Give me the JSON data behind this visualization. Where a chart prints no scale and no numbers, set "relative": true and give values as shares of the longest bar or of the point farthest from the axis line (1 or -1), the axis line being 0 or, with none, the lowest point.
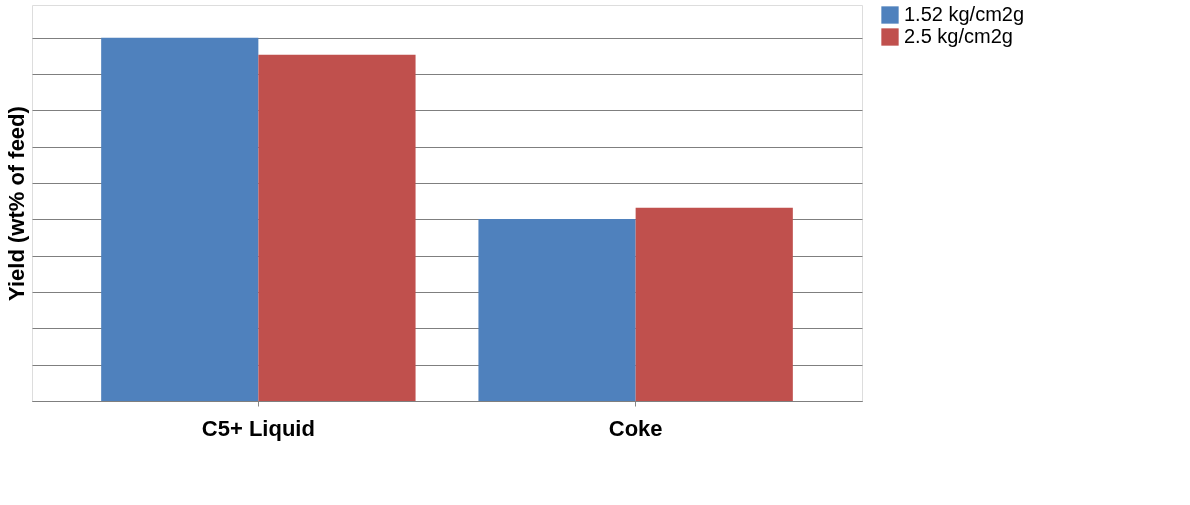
{
  "chart_data": {
    "type": "bar",
    "relative": true,
    "ylabel": "Yield (wt% of feed)",
    "categories": [
      "C5+ Liquid",
      "Coke"
    ],
    "series": [
      {
        "name": "1.52 kg/cm2g",
        "color": "#4f81bd",
        "values": [
          1,
          0.501
        ]
      },
      {
        "name": "2.5 kg/cm2g",
        "color": "#c0504d",
        "values": [
          0.953,
          0.532
        ]
      }
    ],
    "grid": "y",
    "legend": "right"
  }
}
